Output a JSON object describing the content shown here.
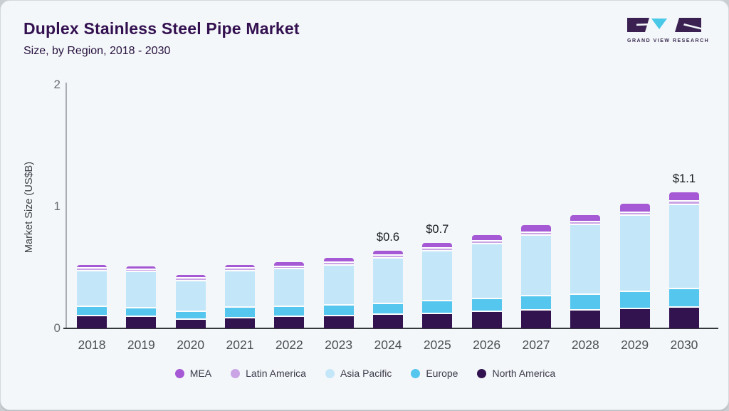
{
  "header": {
    "title": "Duplex Stainless Steel Pipe Market",
    "subtitle": "Size, by Region, 2018 - 2030"
  },
  "logo": {
    "text": "GRAND VIEW RESEARCH",
    "dark_color": "#3a2152",
    "accent_color": "#49c8e8"
  },
  "chart_data": {
    "type": "bar",
    "stacked": true,
    "title": "Duplex Stainless Steel Pipe Market Size, by Region, 2018 - 2030",
    "ylabel": "Market Size (US$B)",
    "ylim": [
      0,
      2
    ],
    "yticks": [
      "0",
      "1",
      "2"
    ],
    "grid": false,
    "legend_position": "bottom",
    "categories": [
      "2018",
      "2019",
      "2020",
      "2021",
      "2022",
      "2023",
      "2024",
      "2025",
      "2026",
      "2027",
      "2028",
      "2029",
      "2030"
    ],
    "series": [
      {
        "name": "North America",
        "color": "#32124f",
        "values": [
          0.1,
          0.095,
          0.071,
          0.079,
          0.091,
          0.098,
          0.108,
          0.114,
          0.133,
          0.143,
          0.147,
          0.159,
          0.172
        ]
      },
      {
        "name": "Europe",
        "color": "#55c6ee",
        "values": [
          0.076,
          0.068,
          0.066,
          0.088,
          0.082,
          0.09,
          0.089,
          0.107,
          0.107,
          0.117,
          0.126,
          0.136,
          0.15
        ]
      },
      {
        "name": "Asia Pacific",
        "color": "#c3e7f8",
        "values": [
          0.292,
          0.296,
          0.251,
          0.3,
          0.31,
          0.327,
          0.376,
          0.411,
          0.45,
          0.5,
          0.572,
          0.625,
          0.689
        ]
      },
      {
        "name": "Latin America",
        "color": "#cba4e6",
        "values": [
          0.022,
          0.021,
          0.021,
          0.021,
          0.022,
          0.021,
          0.021,
          0.021,
          0.021,
          0.023,
          0.023,
          0.027,
          0.029
        ]
      },
      {
        "name": "MEA",
        "color": "#a559d4",
        "values": [
          0.032,
          0.027,
          0.031,
          0.031,
          0.039,
          0.045,
          0.045,
          0.049,
          0.055,
          0.062,
          0.058,
          0.072,
          0.076
        ]
      }
    ],
    "value_labels": [
      {
        "category": "2024",
        "text": "$0.6"
      },
      {
        "category": "2025",
        "text": "$0.7"
      },
      {
        "category": "2030",
        "text": "$1.1"
      }
    ],
    "legend_order": [
      "MEA",
      "Latin America",
      "Asia Pacific",
      "Europe",
      "North America"
    ]
  }
}
